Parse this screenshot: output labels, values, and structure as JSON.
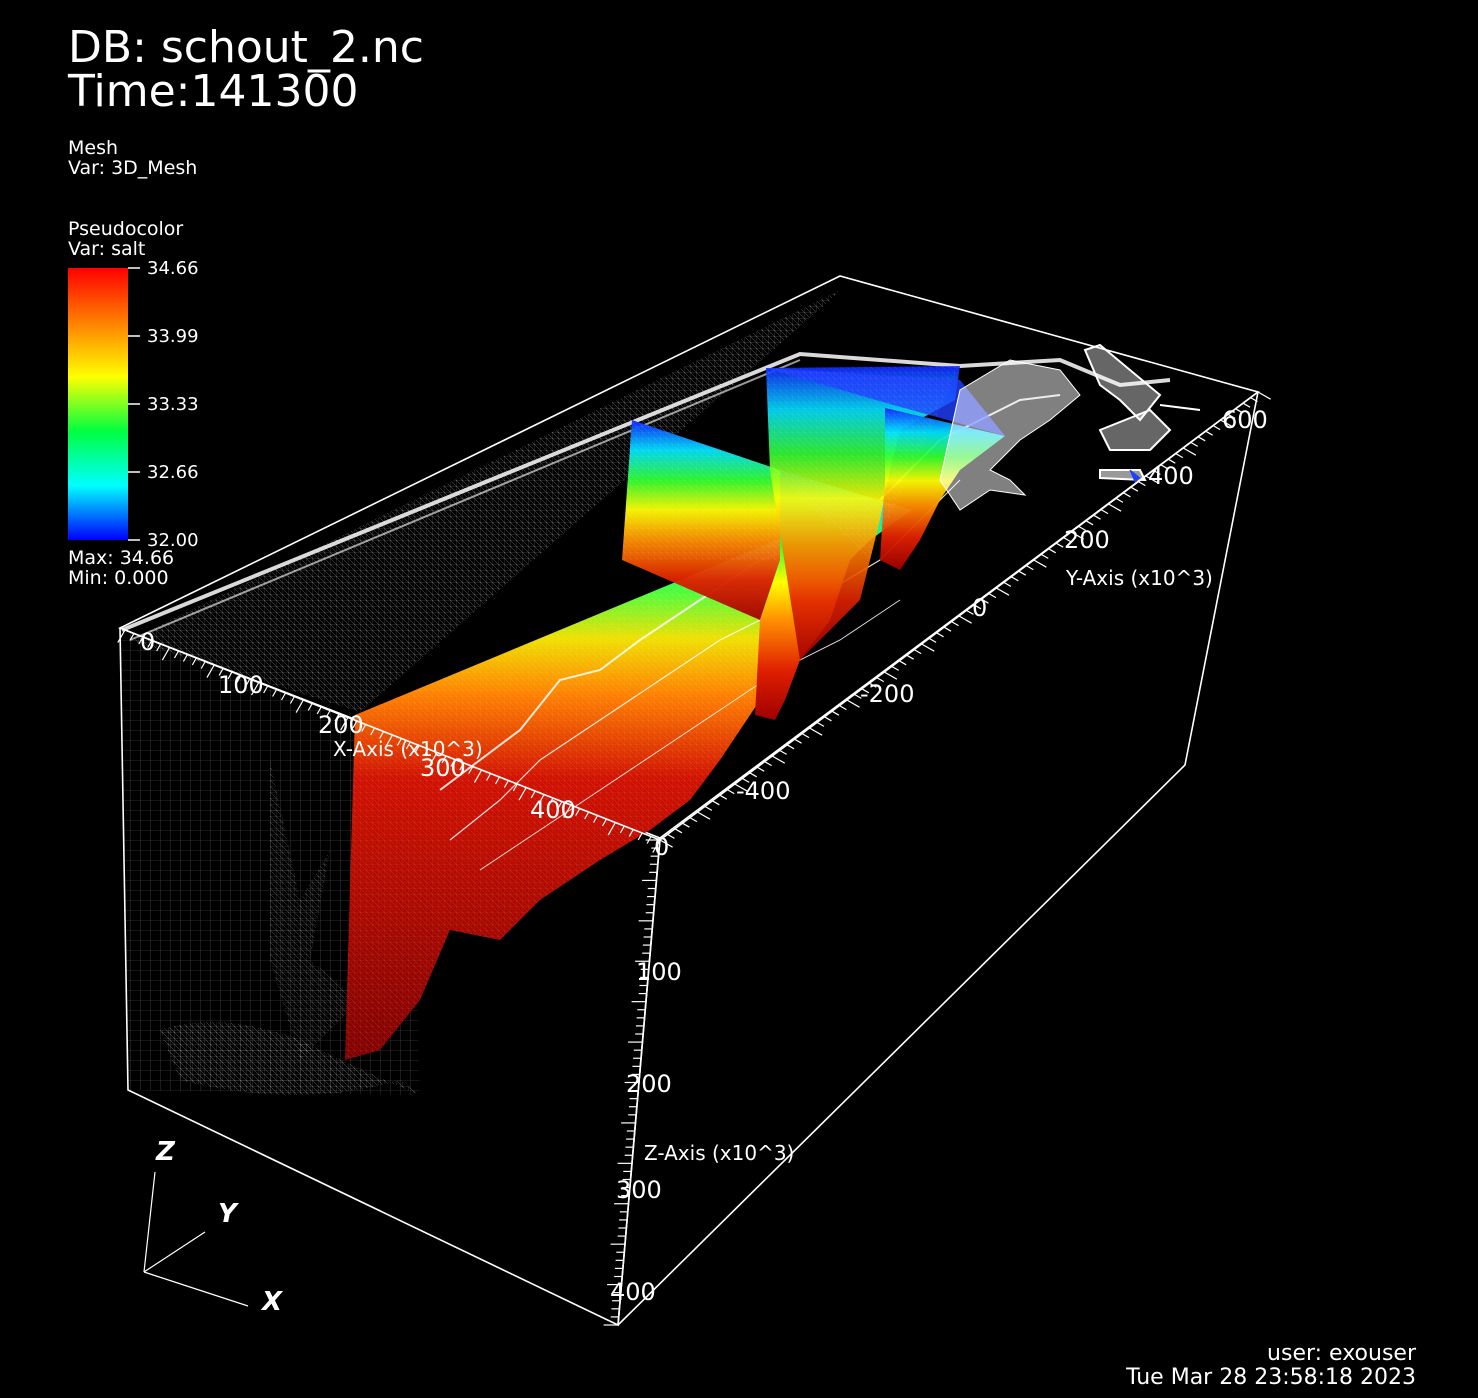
{
  "header": {
    "db": "DB: schout_2.nc",
    "time": "Time:141300"
  },
  "mesh_plot": {
    "title": "Mesh",
    "var": "Var: 3D_Mesh"
  },
  "pseudocolor_plot": {
    "title": "Pseudocolor",
    "var": "Var: salt",
    "ticks": [
      "34.66",
      "33.99",
      "33.33",
      "32.66",
      "32.00"
    ],
    "max": "Max:  34.66",
    "min": "Min:  0.000",
    "colors": [
      "#ff0000",
      "#ff8000",
      "#ffff00",
      "#00ff40",
      "#00ffff",
      "#0000ff"
    ]
  },
  "axes": {
    "x_title": "X-Axis (x10^3)",
    "y_title": "Y-Axis (x10^3)",
    "z_title": "Z-Axis (x10^3)",
    "x_ticks": [
      "0",
      "100",
      "200",
      "300",
      "400"
    ],
    "y_ticks": [
      "-400",
      "-200",
      "0",
      "200",
      "400",
      "600"
    ],
    "z_ticks": [
      "0",
      "100",
      "200",
      "300",
      "400"
    ]
  },
  "triad": {
    "z": "Z",
    "y": "Y",
    "x": "X"
  },
  "footer": {
    "user": "user: exouser",
    "date": "Tue Mar 28 23:58:18 2023"
  }
}
